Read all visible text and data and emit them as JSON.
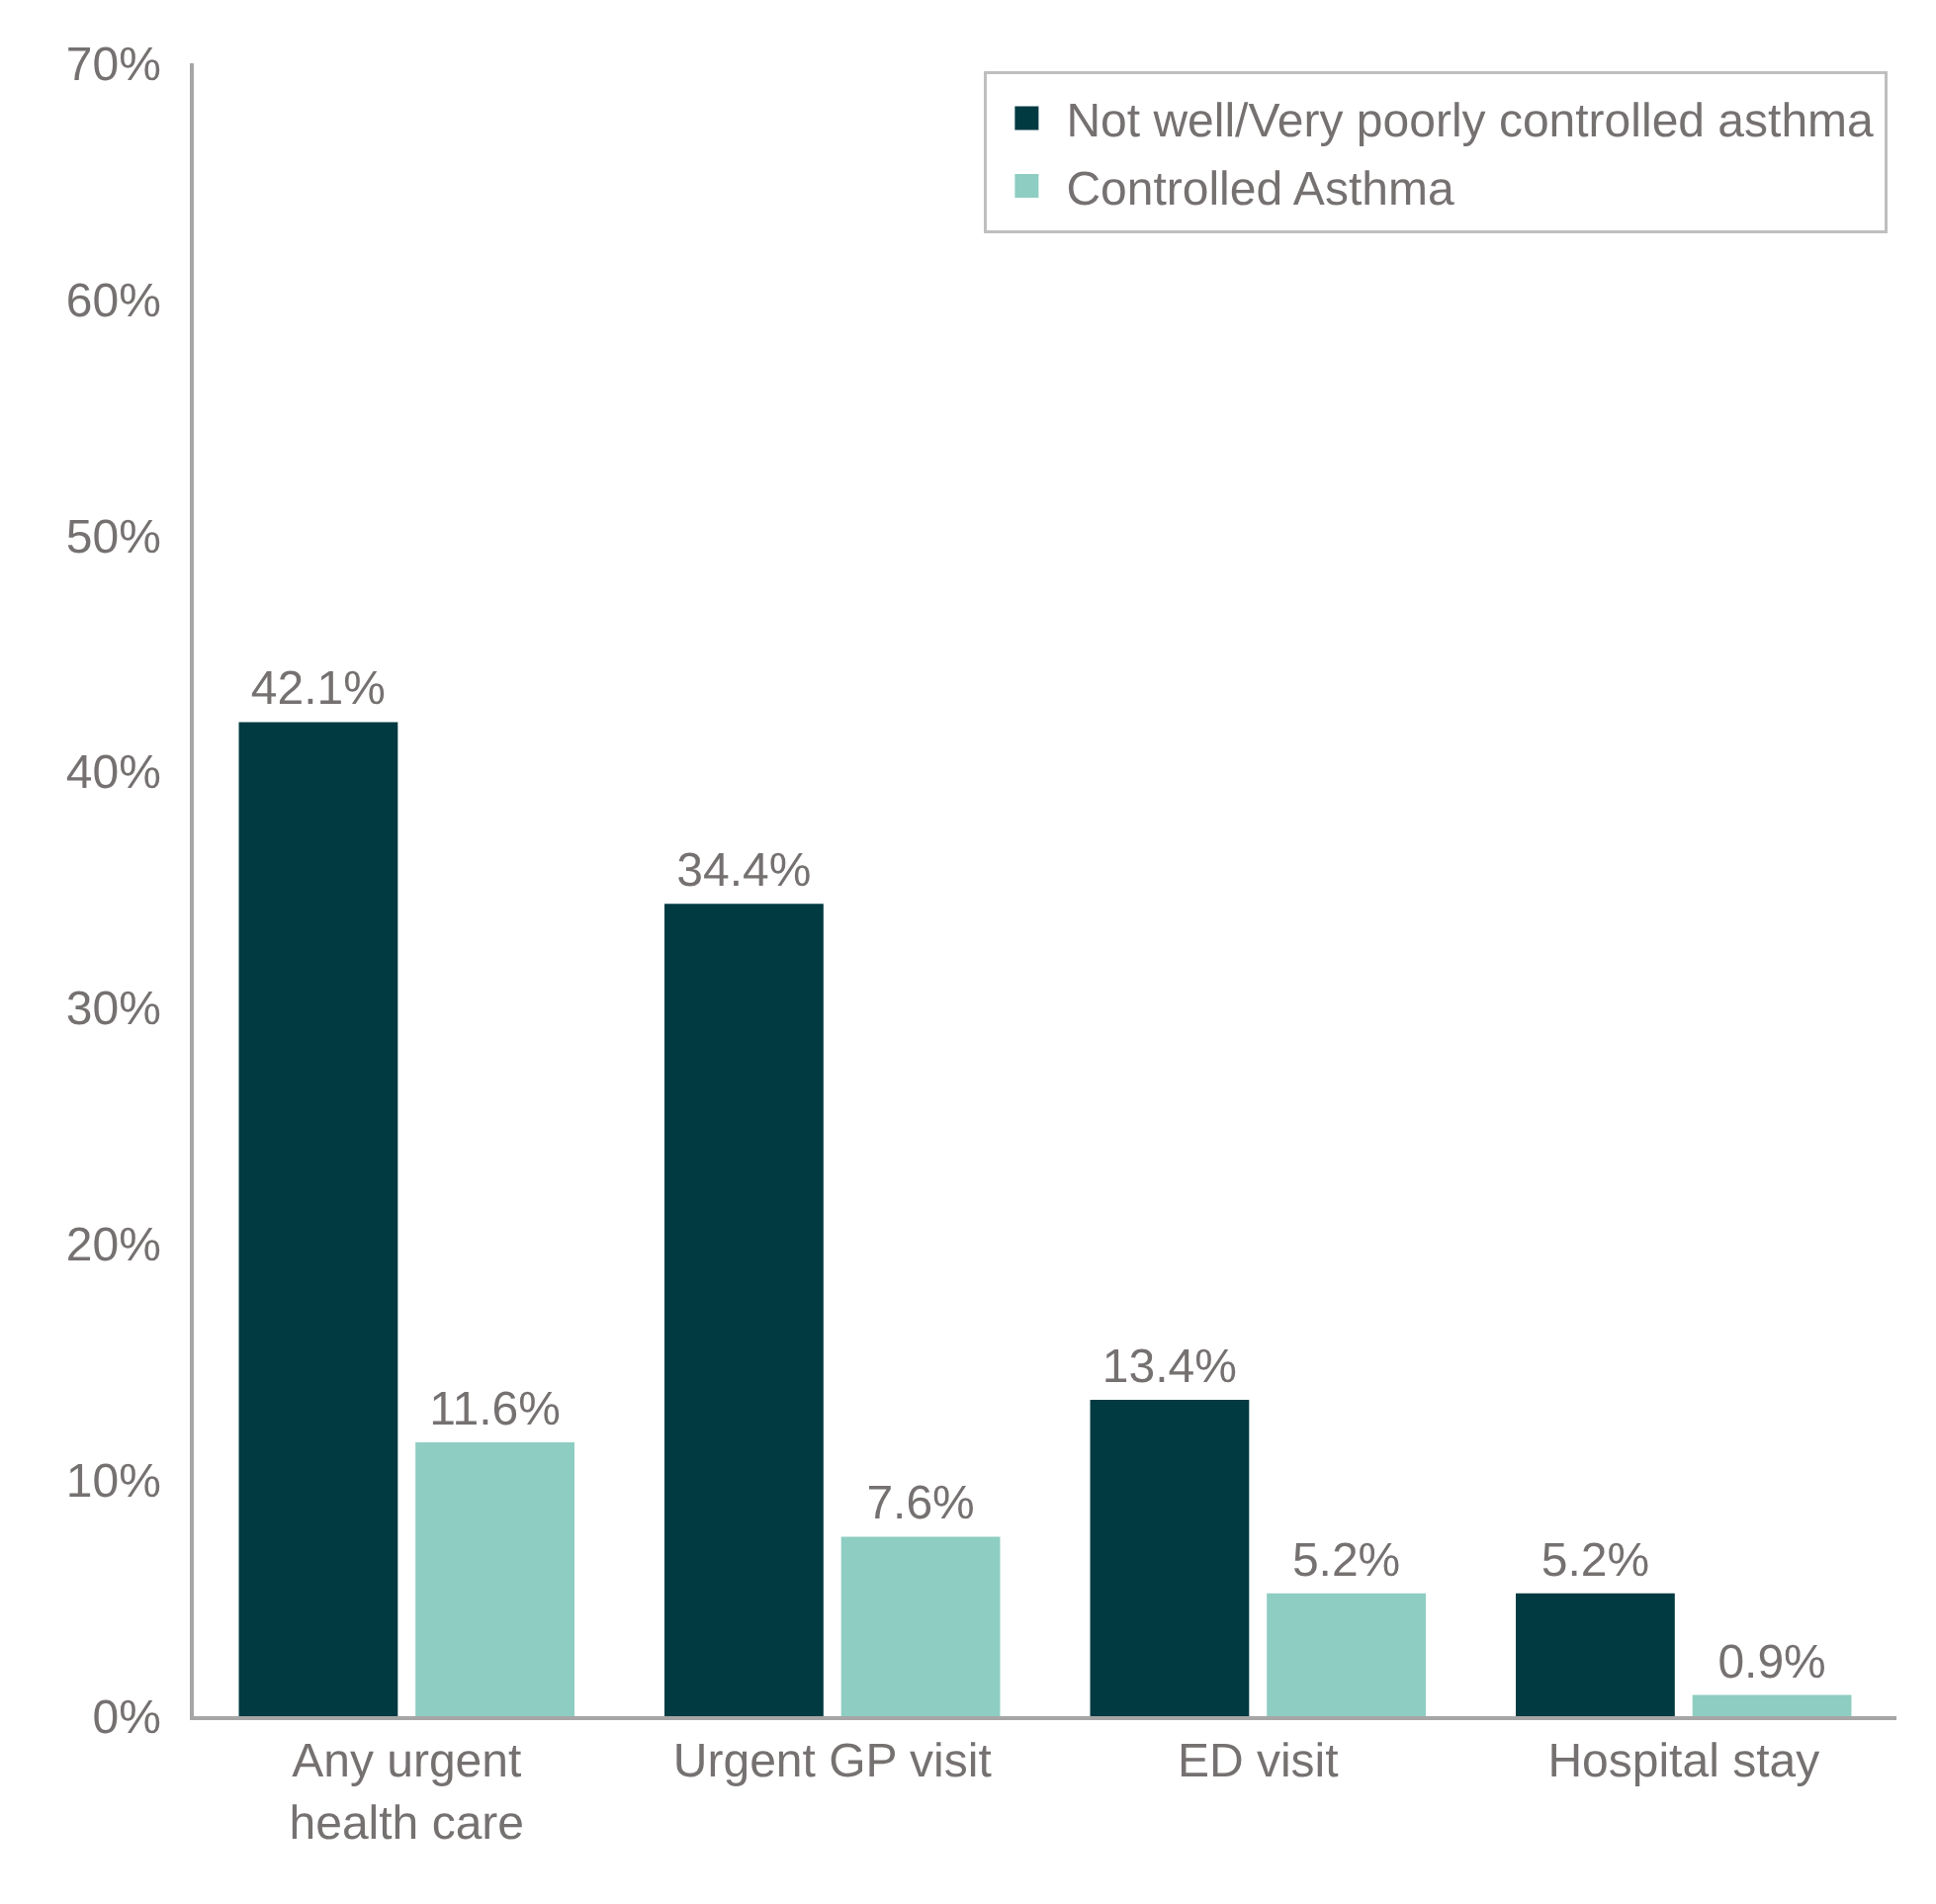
{
  "chart_data": {
    "type": "bar",
    "categories": [
      "Any urgent health care",
      "Urgent GP visit",
      "ED visit",
      "Hospital stay"
    ],
    "series": [
      {
        "name": "Not well/Very poorly controlled asthma",
        "color": "#023a42",
        "values": [
          42.1,
          34.4,
          13.4,
          5.2
        ],
        "value_labels": [
          "42.1%",
          "34.4%",
          "13.4%",
          "5.2%"
        ]
      },
      {
        "name": "Controlled Asthma",
        "color": "#8ecdc2",
        "values": [
          11.6,
          7.6,
          5.2,
          0.9
        ],
        "value_labels": [
          "11.6%",
          "7.6%",
          "5.2%",
          "0.9%"
        ]
      }
    ],
    "ylim": [
      0,
      70
    ],
    "yticks": [
      {
        "value": 0,
        "label": "0%"
      },
      {
        "value": 10,
        "label": "10%"
      },
      {
        "value": 20,
        "label": "20%"
      },
      {
        "value": 30,
        "label": "30%"
      },
      {
        "value": 40,
        "label": "40%"
      },
      {
        "value": 50,
        "label": "50%"
      },
      {
        "value": 60,
        "label": "60%"
      },
      {
        "value": 70,
        "label": "70%"
      }
    ],
    "legend": "top right"
  }
}
